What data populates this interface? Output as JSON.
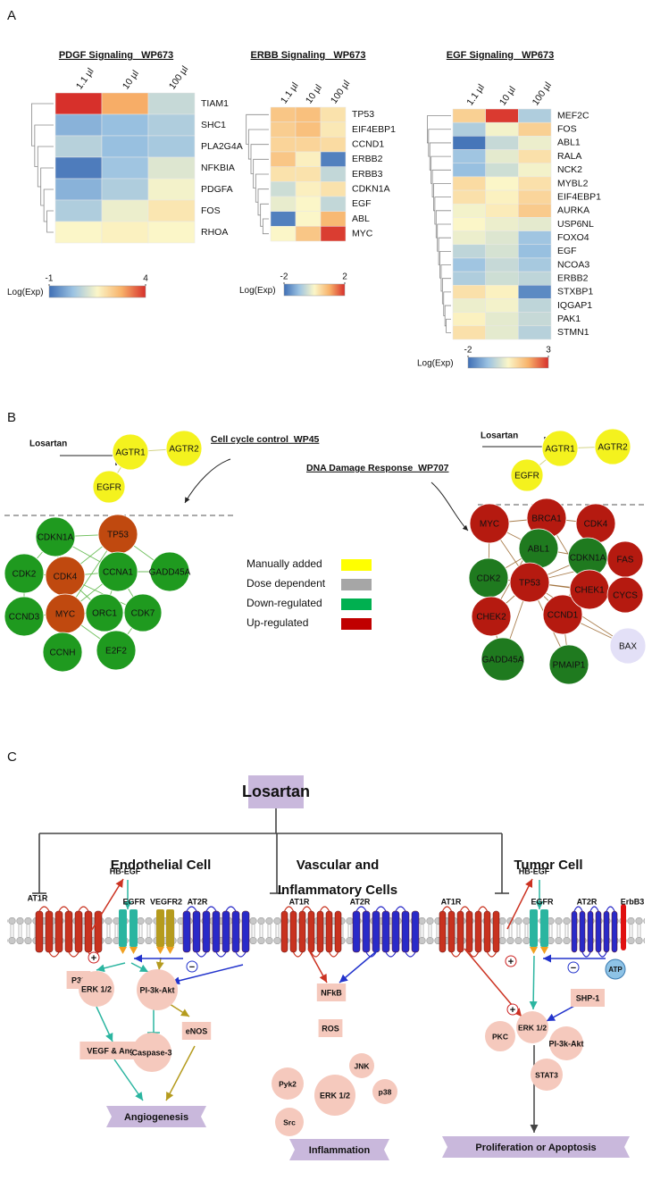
{
  "panel_labels": [
    "A",
    "B",
    "C"
  ],
  "colormap": [
    "#3f6fb5",
    "#9cc3e2",
    "#fbf6c8",
    "#f8b26a",
    "#d7302b"
  ],
  "heatmaps": [
    {
      "title": "PDGF Signaling _WP673",
      "columns": [
        "1.1 µl",
        "10 µl",
        "100 µl"
      ],
      "rows": [
        "TIAM1",
        "SHC1",
        "PLA2G4A",
        "NFKBIA",
        "PDGFA",
        "FOS",
        "RHOA"
      ],
      "values": [
        [
          4,
          2.8,
          0.8
        ],
        [
          0,
          0.2,
          0.5
        ],
        [
          0.6,
          0.2,
          0.4
        ],
        [
          -0.8,
          0.3,
          1.1
        ],
        [
          0,
          0.5,
          1.4
        ],
        [
          0.5,
          1.3,
          1.8
        ],
        [
          1.5,
          1.6,
          1.5
        ]
      ],
      "colorbar_label": "Log(Exp)",
      "lim": [
        -1,
        4
      ],
      "ticks": [
        -1,
        4
      ]
    },
    {
      "title": "ERBB Signaling _WP673",
      "columns": [
        "1.1 µl",
        "10 µl",
        "100 µl"
      ],
      "rows": [
        "TP53",
        "EIF4EBP1",
        "CCND1",
        "ERBB2",
        "ERBB3",
        "CDKN1A",
        "EGF",
        "ABL",
        "MYC"
      ],
      "values": [
        [
          0.7,
          0.8,
          0.3
        ],
        [
          0.6,
          0.8,
          0.2
        ],
        [
          0.5,
          0.5,
          0.4
        ],
        [
          0.7,
          0.1,
          -1.8
        ],
        [
          0.3,
          0.3,
          -0.6
        ],
        [
          -0.5,
          0.1,
          0.3
        ],
        [
          -0.2,
          0,
          -0.6
        ],
        [
          -1.8,
          0,
          0.9
        ],
        [
          0,
          0.7,
          1.9
        ]
      ],
      "colorbar_label": "Log(Exp)",
      "lim": [
        -2,
        2
      ],
      "ticks": [
        -2,
        2
      ]
    },
    {
      "title": "EGF Signaling _WP673",
      "columns": [
        "1.1 µl",
        "10 µl",
        "100 µl"
      ],
      "rows": [
        "MEF2C",
        "FOS",
        "ABL1",
        "RALA",
        "NCK2",
        "MYBL2",
        "EIF4EBP1",
        "AURKA",
        "USP6NL",
        "FOXO4",
        "EGF",
        "NCOA3",
        "ERBB2",
        "STXBP1",
        "IQGAP1",
        "PAK1",
        "STMN1"
      ],
      "values": [
        [
          1.2,
          2.9,
          -0.5
        ],
        [
          -0.5,
          0.4,
          1.2
        ],
        [
          -1.9,
          -0.2,
          0.3
        ],
        [
          -0.7,
          0.2,
          0.9
        ],
        [
          -0.8,
          -0.1,
          0.4
        ],
        [
          1,
          0.5,
          0.9
        ],
        [
          0.9,
          0.6,
          1.1
        ],
        [
          0.4,
          0.7,
          1.3
        ],
        [
          0.5,
          0.3,
          0.2
        ],
        [
          0.3,
          0.1,
          -0.7
        ],
        [
          -0.3,
          0,
          -0.8
        ],
        [
          -0.7,
          -0.2,
          -0.6
        ],
        [
          -0.5,
          -0.1,
          -0.3
        ],
        [
          0.9,
          0.6,
          -1.6
        ],
        [
          0.3,
          0.4,
          -0.3
        ],
        [
          0.6,
          0.2,
          -0.2
        ],
        [
          0.9,
          0.2,
          -0.4
        ]
      ],
      "colorbar_label": "Log(Exp)",
      "lim": [
        -2,
        3
      ],
      "ticks": [
        -2,
        3
      ]
    }
  ],
  "networks": [
    {
      "title": "Cell cycle control_WP45",
      "drug": "Losartan",
      "edge_color": "#5fb84a",
      "nodes": [
        {
          "label": "AGTR1",
          "color": "#f4f21e"
        },
        {
          "label": "AGTR2",
          "color": "#f4f21e"
        },
        {
          "label": "EGFR",
          "color": "#f4f21e"
        },
        {
          "label": "CDKN1A",
          "color": "#1f9a1f"
        },
        {
          "label": "TP53",
          "color": "#c0490f"
        },
        {
          "label": "CDK2",
          "color": "#1f9a1f"
        },
        {
          "label": "CDK4",
          "color": "#c0490f"
        },
        {
          "label": "CCNA1",
          "color": "#1f9a1f"
        },
        {
          "label": "GADD45A",
          "color": "#1f9a1f"
        },
        {
          "label": "CCND3",
          "color": "#1f9a1f"
        },
        {
          "label": "MYC",
          "color": "#c0490f"
        },
        {
          "label": "ORC1",
          "color": "#1f9a1f"
        },
        {
          "label": "CDK7",
          "color": "#1f9a1f"
        },
        {
          "label": "CCNH",
          "color": "#1f9a1f"
        },
        {
          "label": "E2F2",
          "color": "#1f9a1f"
        }
      ]
    },
    {
      "title": "DNA Damage Response_WP707",
      "drug": "Losartan",
      "edge_color": "#a0703a",
      "nodes": [
        {
          "label": "AGTR1",
          "color": "#f4f21e"
        },
        {
          "label": "AGTR2",
          "color": "#f4f21e"
        },
        {
          "label": "EGFR",
          "color": "#f4f21e"
        },
        {
          "label": "MYC",
          "color": "#b51a10"
        },
        {
          "label": "BRCA1",
          "color": "#b51a10"
        },
        {
          "label": "CDK4",
          "color": "#b51a10"
        },
        {
          "label": "CDK2",
          "color": "#1f7a1f"
        },
        {
          "label": "ABL1",
          "color": "#1f7a1f"
        },
        {
          "label": "CDKN1A",
          "color": "#1f7a1f"
        },
        {
          "label": "FAS",
          "color": "#b51a10"
        },
        {
          "label": "CHEK2",
          "color": "#b51a10"
        },
        {
          "label": "TP53",
          "color": "#b51a10"
        },
        {
          "label": "CCND1",
          "color": "#b51a10"
        },
        {
          "label": "CHEK1",
          "color": "#b51a10"
        },
        {
          "label": "CYCS",
          "color": "#b51a10"
        },
        {
          "label": "GADD45A",
          "color": "#1f7a1f"
        },
        {
          "label": "PMAIP1",
          "color": "#1f7a1f"
        },
        {
          "label": "BAX",
          "color": "#e3e0f7"
        }
      ]
    }
  ],
  "legend": [
    {
      "label": "Manually added",
      "color": "#ffff00"
    },
    {
      "label": "Dose dependent",
      "color": "#a6a6a6"
    },
    {
      "label": "Down-regulated",
      "color": "#00b050"
    },
    {
      "label": "Up-regulated",
      "color": "#c00000"
    }
  ],
  "diagram": {
    "drug": "Losartan",
    "labels": [
      "Endothelial Cell",
      "Vascular and",
      "Inflammatory Cells",
      "Tumor Cell",
      "AT1R",
      "HB-EGF",
      "EGFR",
      "VEGFR2",
      "AT2R",
      "AT1R",
      "AT2R",
      "AT1R",
      "HB-EGF",
      "EGFR",
      "AT2R",
      "ErbB3",
      "P38",
      "ERK 1/2",
      "PI-3k-Akt",
      "eNOS",
      "VEGF & Ang-2",
      "Caspase-3",
      "Angiogenesis",
      "NFkB",
      "ROS",
      "Pyk2",
      "ERK 1/2",
      "JNK",
      "p38",
      "Src",
      "Inflammation",
      "ATP",
      "SHP-1",
      "PKC",
      "ERK 1/2",
      "PI-3k-Akt",
      "STAT3",
      "Proliferation or Apoptosis",
      "+",
      "−",
      "+",
      "−",
      "+"
    ]
  }
}
